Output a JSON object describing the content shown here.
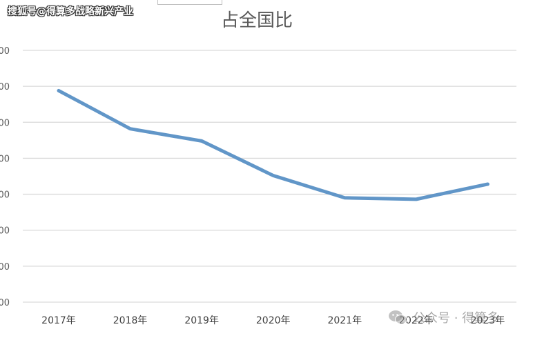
{
  "watermark": {
    "source": "搜狐号@得算多战略新兴产业",
    "account": "公众号 · 得算多",
    "icon": "wechat-icon"
  },
  "chart_data": {
    "type": "line",
    "title": "占全国比",
    "categories": [
      "2017年",
      "2018年",
      "2019年",
      "2020年",
      "2021年",
      "2022年",
      "2023年"
    ],
    "series": [
      {
        "values": [
          5.88,
          4.82,
          4.48,
          3.52,
          2.9,
          2.86,
          3.28
        ]
      }
    ],
    "ylim": [
      0,
      7
    ],
    "yticks": [
      0,
      1,
      2,
      3,
      4,
      5,
      6,
      7
    ],
    "ytick_labels": [
      "00",
      "00",
      "00",
      "00",
      "00",
      "00",
      "00",
      "00"
    ],
    "grid": true,
    "color": "#6196c8",
    "xlabel": "",
    "ylabel": ""
  }
}
